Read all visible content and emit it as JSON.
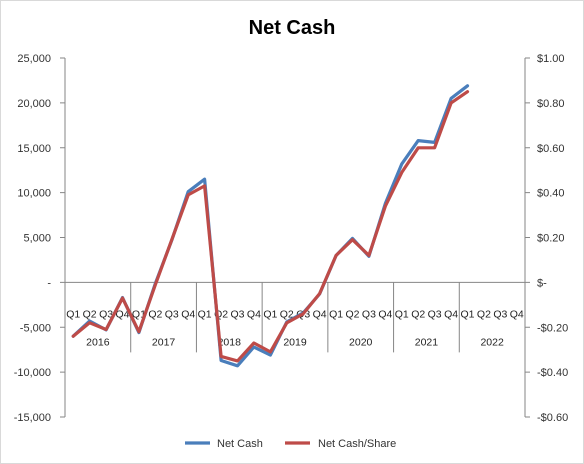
{
  "chart_data": {
    "type": "line",
    "title": "Net Cash",
    "x_categories": [
      "Q1",
      "Q2",
      "Q3",
      "Q4",
      "Q1",
      "Q2",
      "Q3",
      "Q4",
      "Q1",
      "Q2",
      "Q3",
      "Q4",
      "Q1",
      "Q2",
      "Q3",
      "Q4",
      "Q1",
      "Q2",
      "Q3",
      "Q4",
      "Q1",
      "Q2",
      "Q3",
      "Q4",
      "Q1",
      "Q2",
      "Q3",
      "Q4"
    ],
    "x_groups": [
      "2016",
      "2017",
      "2018",
      "2019",
      "2020",
      "2021",
      "2022"
    ],
    "y_left": {
      "min": -15000,
      "max": 25000,
      "step": 5000,
      "tick_labels": [
        "25,000",
        "20,000",
        "15,000",
        "10,000",
        "5,000",
        "-",
        "-5,000",
        "-10,000",
        "-15,000"
      ]
    },
    "y_right": {
      "min": -0.6,
      "max": 1.0,
      "step": 0.2,
      "tick_labels": [
        "$1.00",
        "$0.80",
        "$0.60",
        "$0.40",
        "$0.20",
        "$-",
        "-$0.20",
        "-$0.40",
        "-$0.60"
      ]
    },
    "legend_position": "bottom",
    "grid": false,
    "series": [
      {
        "name": "Net Cash",
        "axis": "left",
        "color": "#4a7ebb",
        "values": [
          -6000,
          -4300,
          -5300,
          -1700,
          -5600,
          -100,
          4700,
          10100,
          11500,
          -8700,
          -9300,
          -7200,
          -8100,
          -4400,
          -3400,
          -1300,
          3000,
          4900,
          2900,
          8800,
          13200,
          15800,
          15600,
          20500,
          21900,
          null,
          null,
          null
        ]
      },
      {
        "name": "Net Cash/Share",
        "axis": "right",
        "color": "#be4b48",
        "values": [
          -0.24,
          -0.18,
          -0.21,
          -0.07,
          -0.22,
          -0.01,
          0.19,
          0.39,
          0.43,
          -0.33,
          -0.35,
          -0.27,
          -0.31,
          -0.18,
          -0.14,
          -0.05,
          0.12,
          0.19,
          0.12,
          0.34,
          0.49,
          0.6,
          0.6,
          0.8,
          0.85,
          null,
          null,
          null
        ]
      }
    ]
  }
}
